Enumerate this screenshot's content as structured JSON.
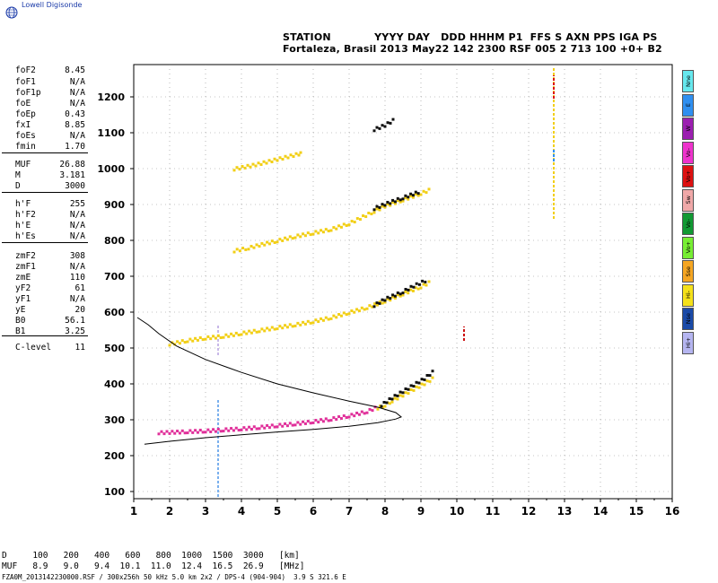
{
  "logo": {
    "text": "Lowell Digisonde",
    "icon": "globe-icon"
  },
  "header": {
    "line1": "STATION            YYYY DAY   DDD HHHM P1  FFS S AXN PPS IGA PS",
    "line2": "Fortaleza, Brasil 2013 May22 142 2300 RSF 005 2 713 100 +0+ B2"
  },
  "params": [
    {
      "name": "foF2",
      "value": "8.45"
    },
    {
      "name": "foF1",
      "value": "N/A"
    },
    {
      "name": "foF1p",
      "value": "N/A"
    },
    {
      "name": "foE",
      "value": "N/A"
    },
    {
      "name": "foEp",
      "value": "0.43"
    },
    {
      "name": "fxI",
      "value": "8.85"
    },
    {
      "name": "foEs",
      "value": "N/A"
    },
    {
      "name": "fmin",
      "value": "1.70"
    },
    {
      "name": "MUF",
      "value": "26.88"
    },
    {
      "name": "M",
      "value": "3.181"
    },
    {
      "name": "D",
      "value": "3000"
    },
    {
      "name": "h'F",
      "value": "255"
    },
    {
      "name": "h'F2",
      "value": "N/A"
    },
    {
      "name": "h'E",
      "value": "N/A"
    },
    {
      "name": "h'Es",
      "value": "N/A"
    },
    {
      "name": "zmF2",
      "value": "308"
    },
    {
      "name": "zmF1",
      "value": "N/A"
    },
    {
      "name": "zmE",
      "value": "110"
    },
    {
      "name": "yF2",
      "value": "61"
    },
    {
      "name": "yF1",
      "value": "N/A"
    },
    {
      "name": "yE",
      "value": "20"
    },
    {
      "name": "B0",
      "value": "56.1"
    },
    {
      "name": "B1",
      "value": "3.25"
    },
    {
      "name": "C-level",
      "value": "11"
    }
  ],
  "legend": [
    {
      "label": "Nne",
      "color": "#66e8ee"
    },
    {
      "label": "E",
      "color": "#2f8ff0"
    },
    {
      "label": "W",
      "color": "#9b1fb0"
    },
    {
      "label": "Vo-",
      "color": "#ee33cc"
    },
    {
      "label": "Vo+",
      "color": "#dd1111"
    },
    {
      "label": "Sw",
      "color": "#f0a8a8"
    },
    {
      "label": "Vo-",
      "color": "#119933"
    },
    {
      "label": "Vo+",
      "color": "#77ee33"
    },
    {
      "label": "Sse",
      "color": "#f5a623"
    },
    {
      "label": "Hi-",
      "color": "#f5e11a"
    },
    {
      "label": "Nse",
      "color": "#1a4aa8"
    },
    {
      "label": "Hi+",
      "color": "#b5b5f0"
    }
  ],
  "footer": {
    "d_row": "D     100   200   400   600   800  1000  1500  3000   [km]",
    "muf_row": "MUF   8.9   9.0   9.4  10.1  11.0  12.4  16.5  26.9   [MHz]",
    "file_line": "FZA0M_2013142230000.RSF / 300x256h 50 kHz 5.0 km 2x2 / DPS-4 (904-904)  3.9 S 321.6 E"
  },
  "chart_data": {
    "type": "scatter",
    "xlim": [
      1,
      16
    ],
    "ylim": [
      80,
      1290
    ],
    "xticks": [
      1,
      2,
      3,
      4,
      5,
      6,
      7,
      8,
      9,
      10,
      11,
      12,
      13,
      14,
      15,
      16
    ],
    "yticks": [
      100,
      200,
      300,
      400,
      500,
      600,
      700,
      800,
      900,
      1000,
      1100,
      1200
    ],
    "traces": [
      {
        "name": "O-trace 1st hop",
        "color": "#e0309a",
        "points": [
          [
            1.7,
            263
          ],
          [
            2.0,
            264
          ],
          [
            2.5,
            266
          ],
          [
            3.0,
            268
          ],
          [
            3.5,
            271
          ],
          [
            4.0,
            274
          ],
          [
            4.5,
            278
          ],
          [
            5.0,
            283
          ],
          [
            5.5,
            288
          ],
          [
            6.0,
            294
          ],
          [
            6.5,
            301
          ],
          [
            7.0,
            310
          ],
          [
            7.5,
            322
          ],
          [
            7.8,
            335
          ]
        ]
      },
      {
        "name": "X-trace 1st hop",
        "color": "#f2cf17",
        "points": [
          [
            7.8,
            332
          ],
          [
            8.0,
            340
          ],
          [
            8.2,
            352
          ],
          [
            8.5,
            368
          ],
          [
            8.8,
            384
          ],
          [
            9.1,
            400
          ],
          [
            9.4,
            418
          ]
        ]
      },
      {
        "name": "upper edge 1st hop",
        "color": "#111111",
        "points": [
          [
            7.9,
            340
          ],
          [
            8.2,
            360
          ],
          [
            8.5,
            378
          ],
          [
            8.8,
            396
          ],
          [
            9.1,
            414
          ],
          [
            9.4,
            438
          ]
        ]
      },
      {
        "name": "2nd hop",
        "color": "#f2cf17",
        "points": [
          [
            2.0,
            510
          ],
          [
            2.5,
            520
          ],
          [
            3.0,
            527
          ],
          [
            3.5,
            532
          ],
          [
            4.0,
            540
          ],
          [
            4.5,
            548
          ],
          [
            5.0,
            556
          ],
          [
            5.5,
            564
          ],
          [
            6.0,
            573
          ],
          [
            6.5,
            584
          ],
          [
            7.0,
            598
          ],
          [
            7.5,
            612
          ],
          [
            8.0,
            630
          ],
          [
            8.5,
            650
          ],
          [
            9.0,
            670
          ],
          [
            9.3,
            685
          ]
        ]
      },
      {
        "name": "2nd hop upper",
        "color": "#111111",
        "points": [
          [
            7.7,
            618
          ],
          [
            8.0,
            635
          ],
          [
            8.5,
            656
          ],
          [
            8.8,
            672
          ],
          [
            9.2,
            690
          ]
        ]
      },
      {
        "name": "3rd hop",
        "color": "#f2cf17",
        "points": [
          [
            3.8,
            770
          ],
          [
            4.2,
            778
          ],
          [
            4.5,
            786
          ],
          [
            5.0,
            798
          ],
          [
            5.5,
            810
          ],
          [
            6.0,
            820
          ],
          [
            6.5,
            830
          ],
          [
            7.0,
            846
          ],
          [
            7.7,
            880
          ],
          [
            8.0,
            895
          ],
          [
            8.5,
            912
          ],
          [
            9.0,
            930
          ],
          [
            9.3,
            942
          ]
        ]
      },
      {
        "name": "3rd hop upper",
        "color": "#111111",
        "points": [
          [
            7.7,
            888
          ],
          [
            8.0,
            900
          ],
          [
            8.5,
            918
          ],
          [
            9.0,
            936
          ]
        ]
      },
      {
        "name": "4th hop",
        "color": "#f2cf17",
        "points": [
          [
            3.8,
            998
          ],
          [
            4.4,
            1010
          ],
          [
            5.6,
            1040
          ],
          [
            5.7,
            1042
          ]
        ]
      },
      {
        "name": "5th hop",
        "color": "#111111",
        "points": [
          [
            7.7,
            1108
          ],
          [
            8.0,
            1120
          ],
          [
            8.3,
            1138
          ]
        ]
      }
    ],
    "profile": {
      "name": "electron density profile",
      "color": "#000000",
      "points": [
        [
          1.3,
          232
        ],
        [
          2.0,
          240
        ],
        [
          3.0,
          250
        ],
        [
          4.0,
          258
        ],
        [
          5.0,
          266
        ],
        [
          6.0,
          273
        ],
        [
          7.0,
          282
        ],
        [
          7.8,
          292
        ],
        [
          8.3,
          302
        ],
        [
          8.45,
          308
        ],
        [
          8.3,
          320
        ],
        [
          7.8,
          335
        ],
        [
          7.0,
          352
        ],
        [
          6.0,
          375
        ],
        [
          5.0,
          400
        ],
        [
          4.0,
          432
        ],
        [
          3.0,
          468
        ],
        [
          2.2,
          505
        ],
        [
          1.7,
          540
        ],
        [
          1.4,
          565
        ],
        [
          1.1,
          585
        ]
      ]
    },
    "spikes": [
      {
        "x": 3.35,
        "ymin": 85,
        "ymax": 360,
        "color": "#7ab0ee"
      },
      {
        "x": 3.35,
        "ymin": 480,
        "ymax": 565,
        "color": "#c8b8e8"
      },
      {
        "x": 10.2,
        "ymin": 520,
        "ymax": 560,
        "color": "#cc1111"
      },
      {
        "x": 12.7,
        "ymin": 860,
        "ymax": 1280,
        "color": "#f2cf17"
      },
      {
        "x": 12.7,
        "ymin": 1195,
        "ymax": 1260,
        "color": "#dd1111"
      },
      {
        "x": 12.7,
        "ymin": 1020,
        "ymax": 1055,
        "color": "#2f8ff0"
      }
    ],
    "grid": "dotted"
  }
}
